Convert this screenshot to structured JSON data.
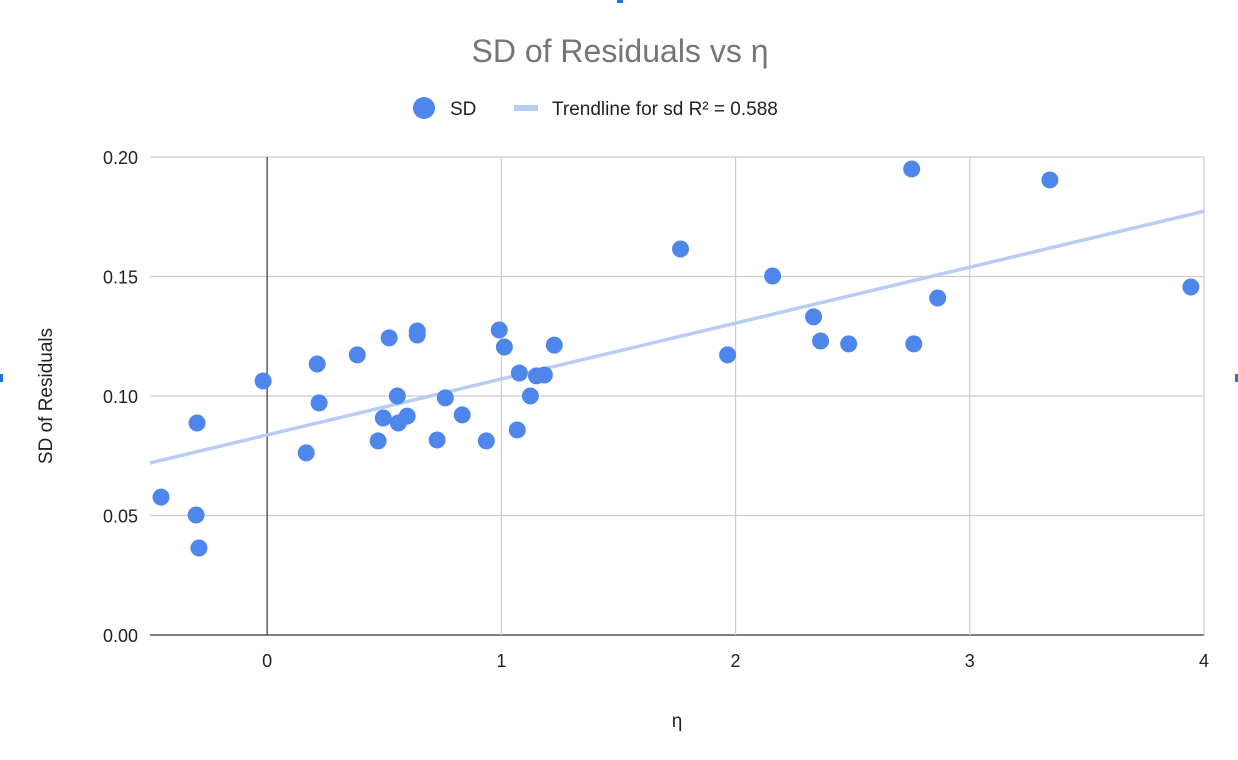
{
  "chart_data": {
    "type": "scatter",
    "title": "SD of Residuals vs η",
    "xlabel": "η",
    "ylabel": "SD of Residuals",
    "xlim": [
      -0.5,
      4
    ],
    "ylim": [
      0,
      0.2
    ],
    "x_ticks": [
      "0",
      "1",
      "2",
      "3",
      "4"
    ],
    "x_tick_values": [
      0,
      1,
      2,
      3,
      4
    ],
    "y_ticks": [
      "0.00",
      "0.05",
      "0.10",
      "0.15",
      "0.20"
    ],
    "y_tick_values": [
      0,
      0.05,
      0.1,
      0.15,
      0.2
    ],
    "grid": true,
    "legend_position": "top",
    "series": [
      {
        "name": "SD",
        "color": "#4f86ec",
        "x": [
          -0.453,
          -0.299,
          -0.303,
          -0.291,
          -0.017,
          0.167,
          0.214,
          0.222,
          0.385,
          0.474,
          0.496,
          0.521,
          0.556,
          0.56,
          0.598,
          0.641,
          0.641,
          0.761,
          0.726,
          0.833,
          0.936,
          0.991,
          1.013,
          1.068,
          1.077,
          1.124,
          1.15,
          1.184,
          1.226,
          1.765,
          1.966,
          2.158,
          2.333,
          2.363,
          2.483,
          2.752,
          2.761,
          2.863,
          3.342,
          3.944
        ],
        "y": [
          0.0577,
          0.0887,
          0.0502,
          0.0364,
          0.1063,
          0.0762,
          0.1134,
          0.0971,
          0.1172,
          0.0812,
          0.0908,
          0.1243,
          0.1,
          0.0887,
          0.0916,
          0.1272,
          0.1255,
          0.0992,
          0.0816,
          0.0921,
          0.0812,
          0.1276,
          0.1205,
          0.0858,
          0.1096,
          0.1,
          0.1084,
          0.1088,
          0.1213,
          0.1615,
          0.1172,
          0.1502,
          0.1331,
          0.123,
          0.1218,
          0.195,
          0.1218,
          0.141,
          0.1904,
          0.1456
        ]
      }
    ],
    "trendline": {
      "name": "Trendline for sd R² = 0.588",
      "type": "linear",
      "slope": 0.0234,
      "intercept": 0.0837,
      "r_squared": 0.588,
      "color": "#b7cdf5"
    },
    "colors": {
      "title": "#757575",
      "grid": "#cccccc",
      "zero_axis": "#333333",
      "text": "#222222"
    }
  }
}
